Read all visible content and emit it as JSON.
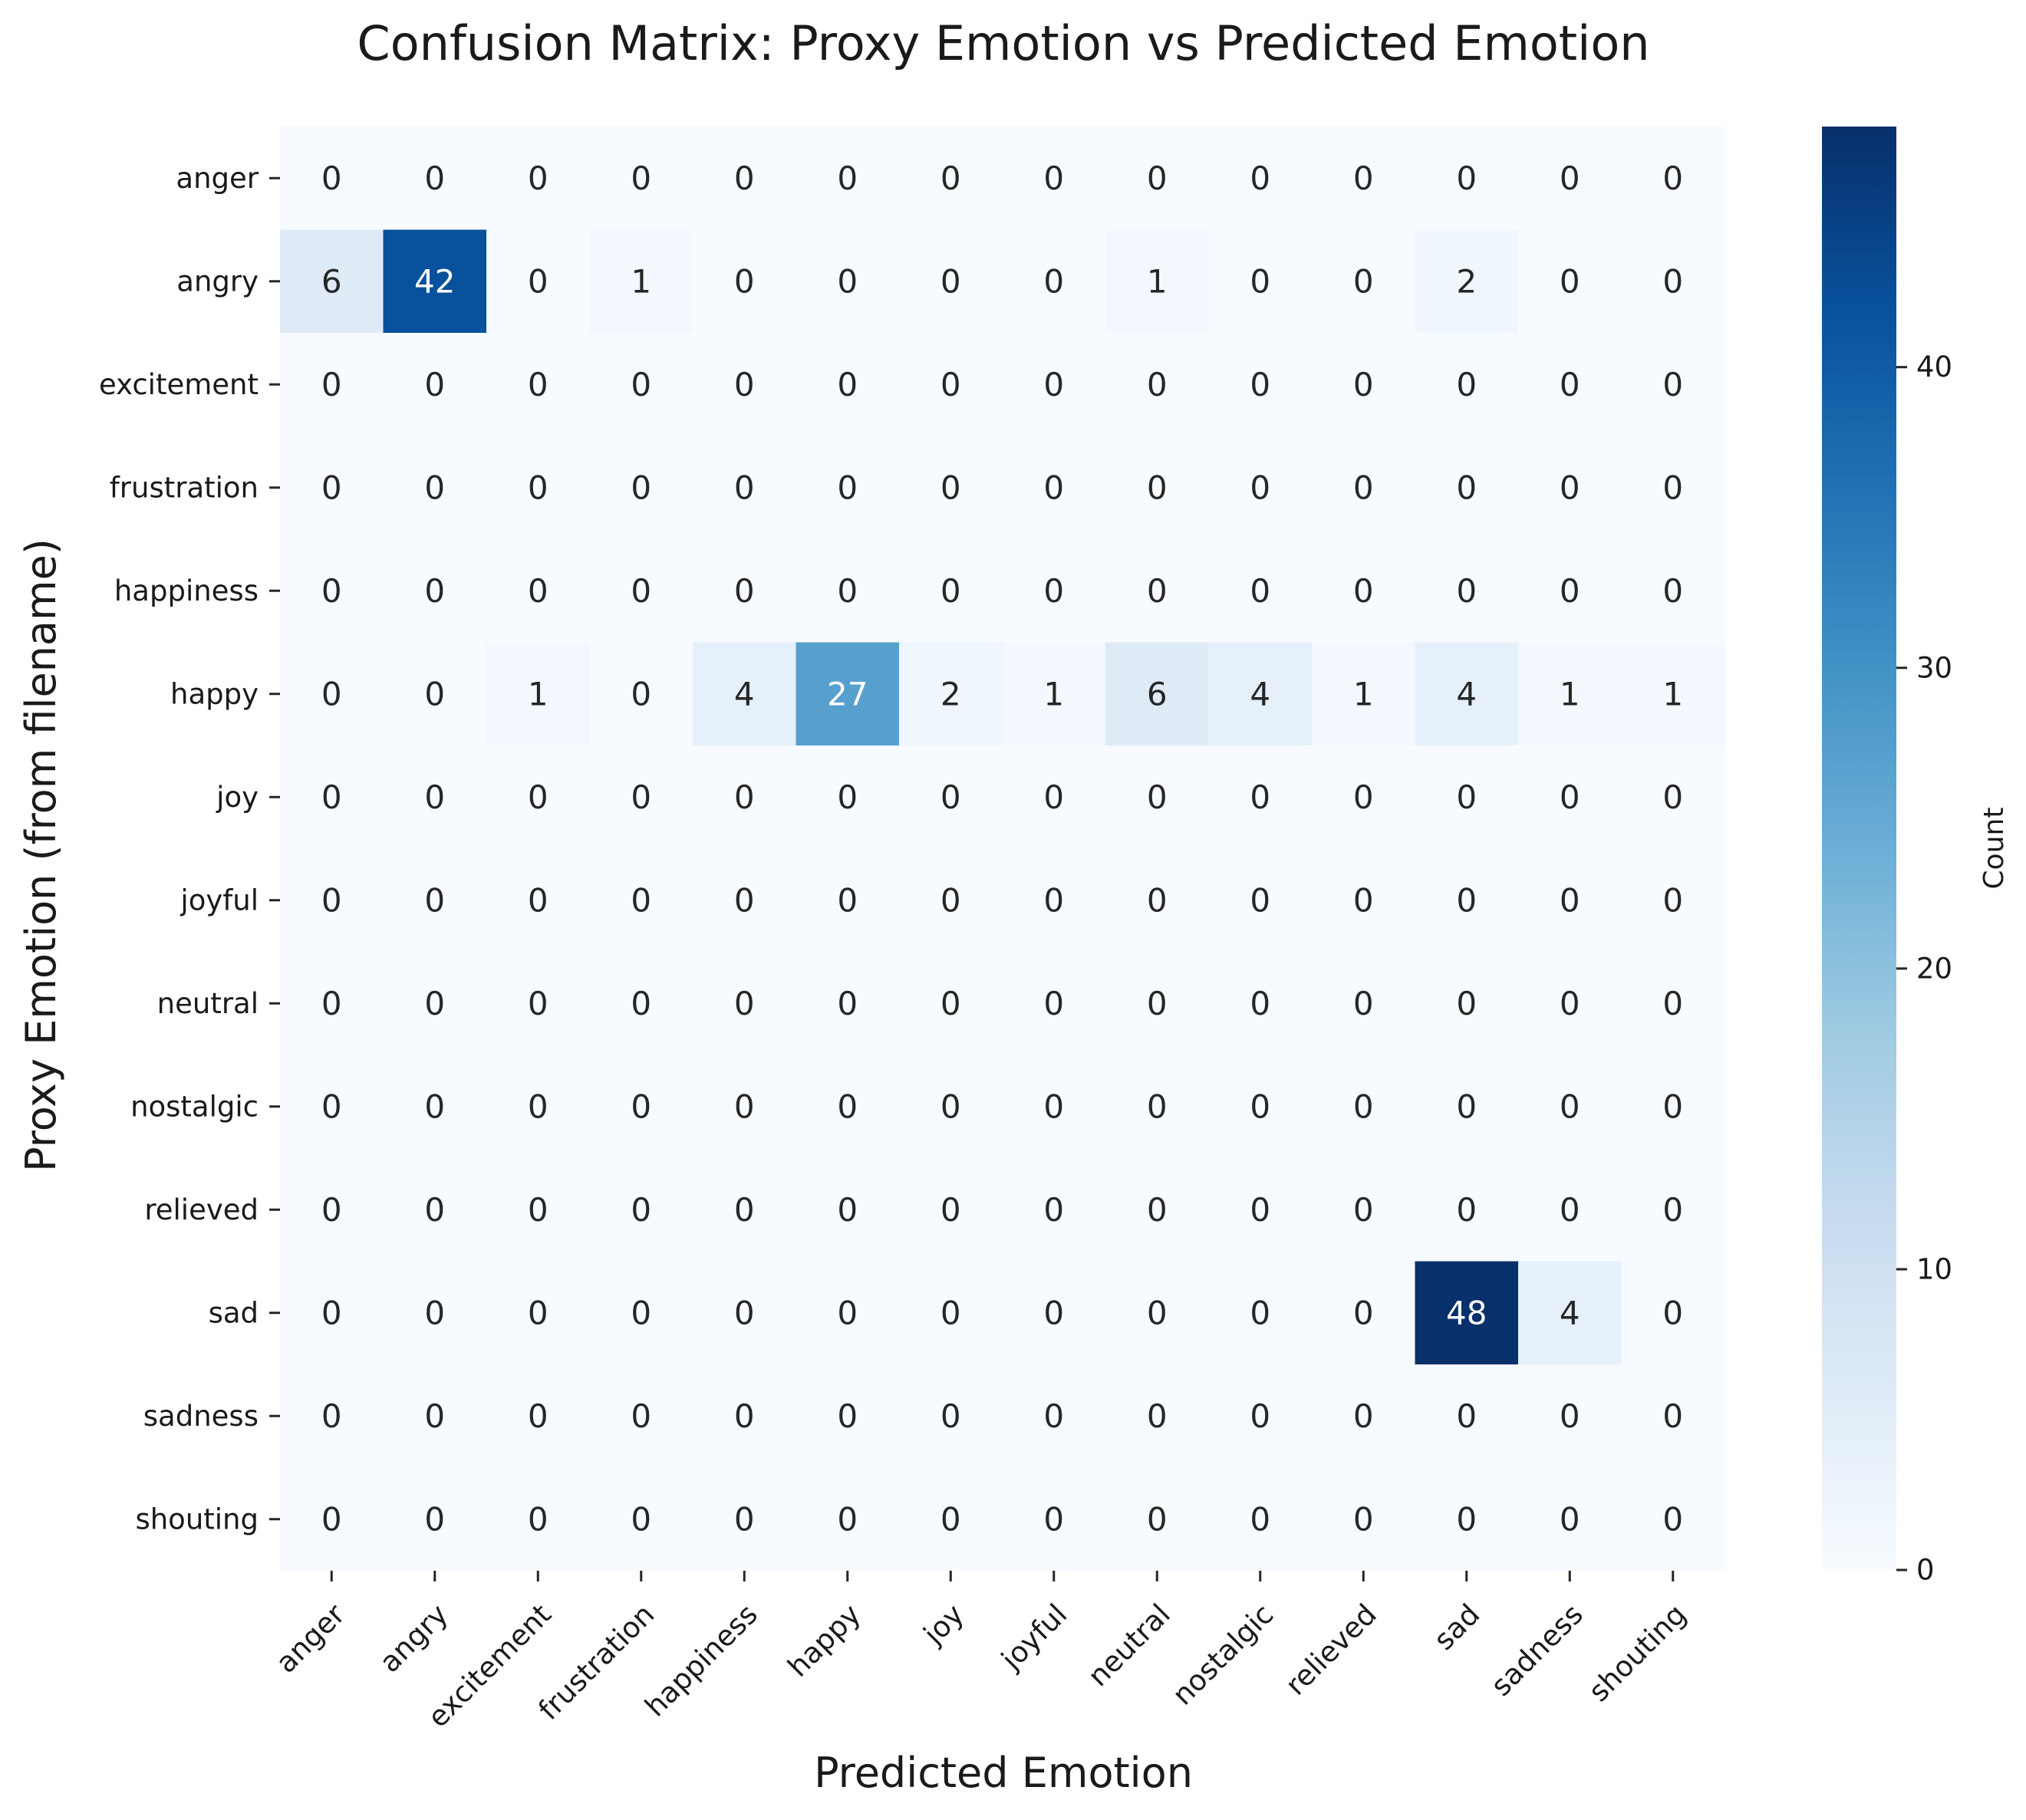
{
  "chart_data": {
    "type": "heatmap",
    "title": "Confusion Matrix: Proxy Emotion vs Predicted Emotion",
    "xlabel": "Predicted Emotion",
    "ylabel": "Proxy Emotion (from filename)",
    "x_categories": [
      "anger",
      "angry",
      "excitement",
      "frustration",
      "happiness",
      "happy",
      "joy",
      "joyful",
      "neutral",
      "nostalgic",
      "relieved",
      "sad",
      "sadness",
      "shouting"
    ],
    "y_categories": [
      "anger",
      "angry",
      "excitement",
      "frustration",
      "happiness",
      "happy",
      "joy",
      "joyful",
      "neutral",
      "nostalgic",
      "relieved",
      "sad",
      "sadness",
      "shouting"
    ],
    "values": [
      [
        0,
        0,
        0,
        0,
        0,
        0,
        0,
        0,
        0,
        0,
        0,
        0,
        0,
        0
      ],
      [
        6,
        42,
        0,
        1,
        0,
        0,
        0,
        0,
        1,
        0,
        0,
        2,
        0,
        0
      ],
      [
        0,
        0,
        0,
        0,
        0,
        0,
        0,
        0,
        0,
        0,
        0,
        0,
        0,
        0
      ],
      [
        0,
        0,
        0,
        0,
        0,
        0,
        0,
        0,
        0,
        0,
        0,
        0,
        0,
        0
      ],
      [
        0,
        0,
        0,
        0,
        0,
        0,
        0,
        0,
        0,
        0,
        0,
        0,
        0,
        0
      ],
      [
        0,
        0,
        1,
        0,
        4,
        27,
        2,
        1,
        6,
        4,
        1,
        4,
        1,
        1
      ],
      [
        0,
        0,
        0,
        0,
        0,
        0,
        0,
        0,
        0,
        0,
        0,
        0,
        0,
        0
      ],
      [
        0,
        0,
        0,
        0,
        0,
        0,
        0,
        0,
        0,
        0,
        0,
        0,
        0,
        0
      ],
      [
        0,
        0,
        0,
        0,
        0,
        0,
        0,
        0,
        0,
        0,
        0,
        0,
        0,
        0
      ],
      [
        0,
        0,
        0,
        0,
        0,
        0,
        0,
        0,
        0,
        0,
        0,
        0,
        0,
        0
      ],
      [
        0,
        0,
        0,
        0,
        0,
        0,
        0,
        0,
        0,
        0,
        0,
        0,
        0,
        0
      ],
      [
        0,
        0,
        0,
        0,
        0,
        0,
        0,
        0,
        0,
        0,
        0,
        48,
        4,
        0
      ],
      [
        0,
        0,
        0,
        0,
        0,
        0,
        0,
        0,
        0,
        0,
        0,
        0,
        0,
        0
      ],
      [
        0,
        0,
        0,
        0,
        0,
        0,
        0,
        0,
        0,
        0,
        0,
        0,
        0,
        0
      ]
    ],
    "colormap": "Blues",
    "colorbar": {
      "label": "Count",
      "range": [
        0,
        48
      ],
      "ticks": [
        0,
        10,
        20,
        30,
        40
      ],
      "colors": [
        "#f7fbff",
        "#deebf7",
        "#c6dbef",
        "#9ecae1",
        "#6baed6",
        "#4292c6",
        "#2171b5",
        "#08519c",
        "#08306b"
      ]
    },
    "annotation_colors": {
      "dark_text": "#262626",
      "light_text": "#ffffff"
    },
    "x_tick_rotation": 45
  }
}
